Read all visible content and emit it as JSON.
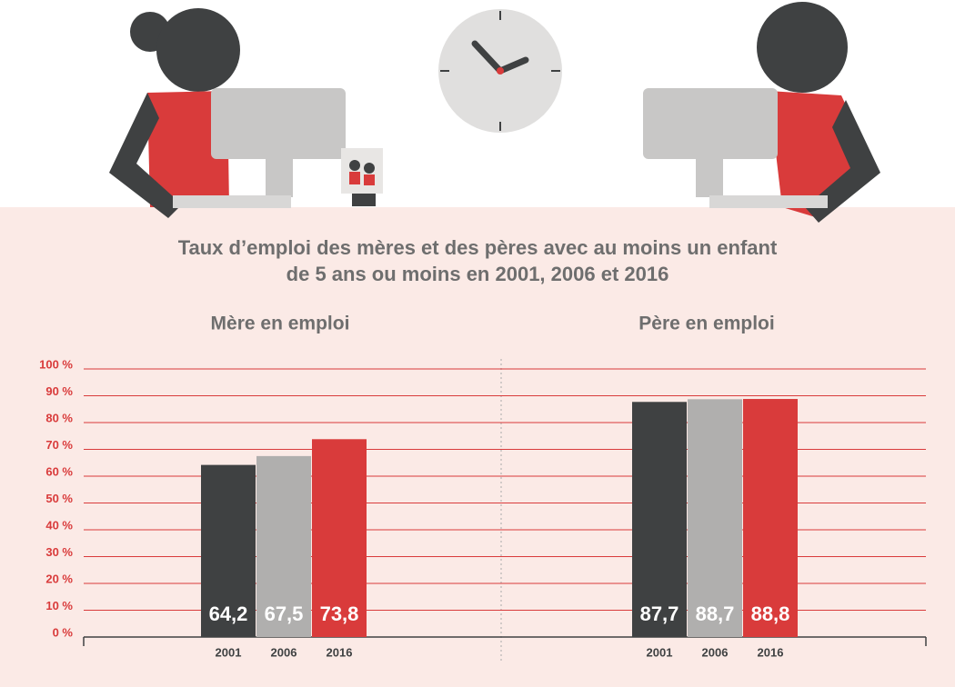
{
  "chart_data": {
    "type": "bar",
    "title": "Taux d’emploi des mères et des pères avec au moins un enfant de 5 ans ou moins en 2001, 2006 et 2016",
    "ylim": [
      0,
      100
    ],
    "yticks": [
      {
        "value": 0,
        "label": "0 %"
      },
      {
        "value": 10,
        "label": "10 %"
      },
      {
        "value": 20,
        "label": "20 %"
      },
      {
        "value": 30,
        "label": "30 %"
      },
      {
        "value": 40,
        "label": "40 %"
      },
      {
        "value": 50,
        "label": "50 %"
      },
      {
        "value": 60,
        "label": "60 %"
      },
      {
        "value": 70,
        "label": "70 %"
      },
      {
        "value": 80,
        "label": "80 %"
      },
      {
        "value": 90,
        "label": "90 %"
      },
      {
        "value": 100,
        "label": "100 %"
      }
    ],
    "grid": true,
    "panels": [
      {
        "title": "Mère en emploi",
        "categories": [
          "2001",
          "2006",
          "2016"
        ],
        "values": [
          64.2,
          67.5,
          73.8
        ],
        "value_labels": [
          "64,2",
          "67,5",
          "73,8"
        ],
        "colors": [
          "#3f4142",
          "#b0afae",
          "#d93b3b"
        ]
      },
      {
        "title": "Père en emploi",
        "categories": [
          "2001",
          "2006",
          "2016"
        ],
        "values": [
          87.7,
          88.7,
          88.8
        ],
        "value_labels": [
          "87,7",
          "88,7",
          "88,8"
        ],
        "colors": [
          "#3f4142",
          "#b0afae",
          "#d93b3b"
        ]
      }
    ]
  }
}
